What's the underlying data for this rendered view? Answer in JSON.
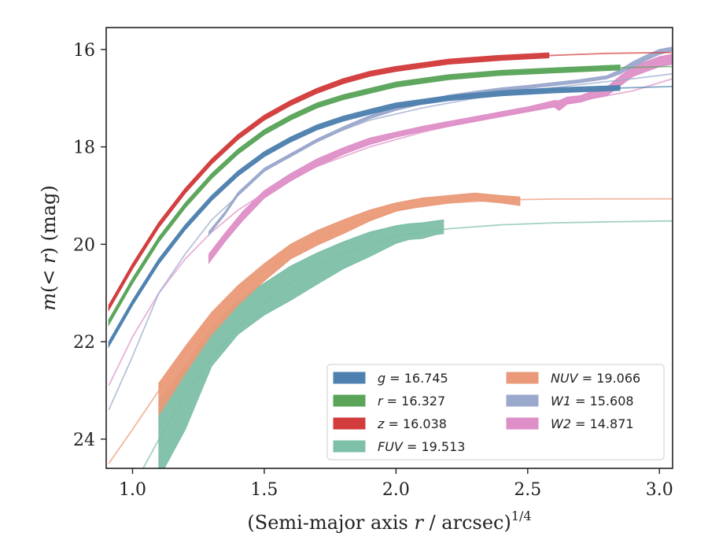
{
  "chart_data": {
    "type": "line",
    "xlabel": "(Semi-major axis r / arcsec)^{1/4}",
    "ylabel": "m(< r) (mag)",
    "xlim": [
      0.9,
      3.05
    ],
    "ylim": [
      24.6,
      15.55
    ],
    "y_inverted": true,
    "grid": false,
    "legend_position": "lower-right",
    "xticks": [
      {
        "value": 1.0,
        "label": "1.0"
      },
      {
        "value": 1.5,
        "label": "1.5"
      },
      {
        "value": 2.0,
        "label": "2.0"
      },
      {
        "value": 2.5,
        "label": "2.5"
      },
      {
        "value": 3.0,
        "label": "3.0"
      }
    ],
    "yticks": [
      {
        "value": 16,
        "label": "16"
      },
      {
        "value": 18,
        "label": "18"
      },
      {
        "value": 20,
        "label": "20"
      },
      {
        "value": 22,
        "label": "22"
      },
      {
        "value": 24,
        "label": "24"
      }
    ],
    "series": [
      {
        "key": "W2",
        "name": "W2 = 14.871",
        "color": "#de8fc7",
        "model": [
          [
            0.91,
            22.9
          ],
          [
            1.0,
            21.9
          ],
          [
            1.1,
            21.0
          ],
          [
            1.2,
            20.3
          ],
          [
            1.3,
            19.75
          ],
          [
            1.4,
            19.3
          ],
          [
            1.5,
            18.95
          ],
          [
            1.7,
            18.4
          ],
          [
            1.9,
            18.0
          ],
          [
            2.1,
            17.7
          ],
          [
            2.3,
            17.45
          ],
          [
            2.5,
            17.25
          ],
          [
            2.7,
            17.05
          ],
          [
            2.9,
            16.85
          ],
          [
            3.05,
            16.6
          ]
        ],
        "observed": [
          [
            1.29,
            20.38,
            20.2
          ],
          [
            1.35,
            19.95,
            19.78
          ],
          [
            1.42,
            19.5,
            19.32
          ],
          [
            1.5,
            19.05,
            18.9
          ],
          [
            1.6,
            18.7,
            18.55
          ],
          [
            1.7,
            18.4,
            18.25
          ],
          [
            1.8,
            18.15,
            18.02
          ],
          [
            1.9,
            17.95,
            17.82
          ],
          [
            2.0,
            17.8,
            17.7
          ],
          [
            2.1,
            17.68,
            17.58
          ],
          [
            2.2,
            17.58,
            17.48
          ],
          [
            2.3,
            17.48,
            17.38
          ],
          [
            2.4,
            17.38,
            17.28
          ],
          [
            2.5,
            17.28,
            17.18
          ],
          [
            2.6,
            17.18,
            17.05
          ],
          [
            2.62,
            17.25,
            17.05
          ],
          [
            2.65,
            17.12,
            16.98
          ],
          [
            2.7,
            17.08,
            16.95
          ],
          [
            2.75,
            17.0,
            16.85
          ],
          [
            2.8,
            16.95,
            16.78
          ],
          [
            2.85,
            16.75,
            16.55
          ],
          [
            2.9,
            16.55,
            16.35
          ],
          [
            2.95,
            16.45,
            16.25
          ],
          [
            3.0,
            16.35,
            16.15
          ],
          [
            3.05,
            16.3,
            16.1
          ]
        ]
      },
      {
        "key": "W1",
        "name": "W1 = 15.608",
        "color": "#9aa8cc",
        "model": [
          [
            0.91,
            23.4
          ],
          [
            1.0,
            22.3
          ],
          [
            1.1,
            21.0
          ],
          [
            1.2,
            20.2
          ],
          [
            1.3,
            19.5
          ],
          [
            1.4,
            19.0
          ],
          [
            1.5,
            18.5
          ],
          [
            1.7,
            17.85
          ],
          [
            1.9,
            17.45
          ],
          [
            2.1,
            17.2
          ],
          [
            2.3,
            17.0
          ],
          [
            2.5,
            16.85
          ],
          [
            2.7,
            16.72
          ],
          [
            2.9,
            16.6
          ],
          [
            3.05,
            16.5
          ]
        ],
        "observed": [
          [
            1.29,
            19.8,
            19.74
          ],
          [
            1.35,
            19.4,
            19.34
          ],
          [
            1.4,
            19.0,
            18.94
          ],
          [
            1.5,
            18.5,
            18.44
          ],
          [
            1.6,
            18.2,
            18.14
          ],
          [
            1.7,
            17.9,
            17.84
          ],
          [
            1.8,
            17.65,
            17.59
          ],
          [
            1.9,
            17.42,
            17.36
          ],
          [
            2.0,
            17.25,
            17.19
          ],
          [
            2.1,
            17.12,
            17.06
          ],
          [
            2.2,
            17.0,
            16.94
          ],
          [
            2.3,
            16.92,
            16.86
          ],
          [
            2.4,
            16.85,
            16.79
          ],
          [
            2.5,
            16.8,
            16.74
          ],
          [
            2.6,
            16.74,
            16.68
          ],
          [
            2.7,
            16.68,
            16.62
          ],
          [
            2.8,
            16.6,
            16.54
          ],
          [
            2.85,
            16.5,
            16.42
          ],
          [
            2.9,
            16.35,
            16.25
          ],
          [
            2.95,
            16.22,
            16.12
          ],
          [
            3.0,
            16.1,
            16.0
          ],
          [
            3.05,
            16.02,
            15.95
          ]
        ]
      },
      {
        "key": "FUV",
        "name": "FUV = 19.513",
        "color": "#7dbfa7",
        "model": [
          [
            0.91,
            26.0
          ],
          [
            1.0,
            25.0
          ],
          [
            1.1,
            24.0
          ],
          [
            1.2,
            23.1
          ],
          [
            1.3,
            22.35
          ],
          [
            1.4,
            21.7
          ],
          [
            1.5,
            21.2
          ],
          [
            1.6,
            20.8
          ],
          [
            1.7,
            20.45
          ],
          [
            1.8,
            20.18
          ],
          [
            1.9,
            19.98
          ],
          [
            2.0,
            19.83
          ],
          [
            2.2,
            19.68
          ],
          [
            2.4,
            19.6
          ],
          [
            2.6,
            19.56
          ],
          [
            2.8,
            19.54
          ],
          [
            3.05,
            19.52
          ]
        ],
        "observed": [
          [
            1.1,
            24.8,
            23.2
          ],
          [
            1.2,
            23.8,
            22.5
          ],
          [
            1.3,
            22.5,
            21.7
          ],
          [
            1.4,
            21.85,
            21.15
          ],
          [
            1.5,
            21.45,
            20.8
          ],
          [
            1.6,
            21.15,
            20.45
          ],
          [
            1.7,
            20.82,
            20.18
          ],
          [
            1.8,
            20.5,
            19.95
          ],
          [
            1.9,
            20.25,
            19.75
          ],
          [
            2.0,
            19.98,
            19.62
          ],
          [
            2.05,
            19.9,
            19.58
          ],
          [
            2.1,
            19.88,
            19.56
          ],
          [
            2.15,
            19.8,
            19.52
          ],
          [
            2.18,
            19.78,
            19.5
          ]
        ]
      },
      {
        "key": "NUV",
        "name": "NUV = 19.066",
        "color": "#ea9a78",
        "model": [
          [
            0.91,
            24.5
          ],
          [
            1.0,
            23.8
          ],
          [
            1.1,
            23.0
          ],
          [
            1.2,
            22.2
          ],
          [
            1.3,
            21.55
          ],
          [
            1.4,
            21.0
          ],
          [
            1.5,
            20.55
          ],
          [
            1.6,
            20.2
          ],
          [
            1.7,
            19.9
          ],
          [
            1.8,
            19.65
          ],
          [
            1.9,
            19.45
          ],
          [
            2.0,
            19.3
          ],
          [
            2.2,
            19.15
          ],
          [
            2.4,
            19.09
          ],
          [
            2.6,
            19.07
          ],
          [
            3.05,
            19.066
          ]
        ],
        "observed": [
          [
            1.1,
            23.5,
            22.85
          ],
          [
            1.2,
            22.65,
            22.1
          ],
          [
            1.3,
            21.85,
            21.4
          ],
          [
            1.4,
            21.25,
            20.85
          ],
          [
            1.5,
            20.75,
            20.4
          ],
          [
            1.6,
            20.3,
            20.0
          ],
          [
            1.7,
            20.02,
            19.72
          ],
          [
            1.8,
            19.78,
            19.5
          ],
          [
            1.9,
            19.52,
            19.3
          ],
          [
            2.0,
            19.32,
            19.15
          ],
          [
            2.1,
            19.22,
            19.05
          ],
          [
            2.2,
            19.15,
            19.0
          ],
          [
            2.3,
            19.1,
            18.95
          ],
          [
            2.4,
            19.15,
            19.0
          ],
          [
            2.47,
            19.2,
            19.03
          ]
        ]
      },
      {
        "key": "g",
        "name": "g = 16.745",
        "color": "#4e81af",
        "model": [
          [
            0.91,
            22.05
          ],
          [
            1.0,
            21.2
          ],
          [
            1.1,
            20.35
          ],
          [
            1.2,
            19.65
          ],
          [
            1.3,
            19.05
          ],
          [
            1.4,
            18.55
          ],
          [
            1.5,
            18.15
          ],
          [
            1.6,
            17.85
          ],
          [
            1.7,
            17.6
          ],
          [
            1.8,
            17.42
          ],
          [
            1.9,
            17.28
          ],
          [
            2.0,
            17.15
          ],
          [
            2.2,
            17.0
          ],
          [
            2.4,
            16.9
          ],
          [
            2.6,
            16.84
          ],
          [
            2.8,
            16.8
          ],
          [
            3.05,
            16.76
          ]
        ],
        "observed": [
          [
            0.91,
            22.1,
            22.0
          ],
          [
            1.0,
            21.25,
            21.15
          ],
          [
            1.1,
            20.4,
            20.3
          ],
          [
            1.2,
            19.7,
            19.6
          ],
          [
            1.3,
            19.1,
            19.0
          ],
          [
            1.4,
            18.6,
            18.5
          ],
          [
            1.5,
            18.2,
            18.1
          ],
          [
            1.6,
            17.9,
            17.8
          ],
          [
            1.7,
            17.65,
            17.55
          ],
          [
            1.8,
            17.47,
            17.37
          ],
          [
            1.9,
            17.33,
            17.23
          ],
          [
            2.0,
            17.2,
            17.1
          ],
          [
            2.2,
            17.05,
            16.95
          ],
          [
            2.4,
            16.95,
            16.85
          ],
          [
            2.6,
            16.89,
            16.79
          ],
          [
            2.8,
            16.85,
            16.75
          ],
          [
            2.85,
            16.84,
            16.74
          ]
        ]
      },
      {
        "key": "r",
        "name": "r = 16.327",
        "color": "#5aa45a",
        "model": [
          [
            0.91,
            21.6
          ],
          [
            1.0,
            20.75
          ],
          [
            1.1,
            19.9
          ],
          [
            1.2,
            19.2
          ],
          [
            1.3,
            18.6
          ],
          [
            1.4,
            18.1
          ],
          [
            1.5,
            17.7
          ],
          [
            1.6,
            17.4
          ],
          [
            1.7,
            17.15
          ],
          [
            1.8,
            16.98
          ],
          [
            1.9,
            16.85
          ],
          [
            2.0,
            16.72
          ],
          [
            2.2,
            16.57
          ],
          [
            2.4,
            16.48
          ],
          [
            2.6,
            16.43
          ],
          [
            2.8,
            16.38
          ],
          [
            3.05,
            16.35
          ]
        ],
        "observed": [
          [
            0.91,
            21.65,
            21.55
          ],
          [
            1.0,
            20.8,
            20.7
          ],
          [
            1.1,
            19.95,
            19.85
          ],
          [
            1.2,
            19.25,
            19.15
          ],
          [
            1.3,
            18.65,
            18.55
          ],
          [
            1.4,
            18.15,
            18.05
          ],
          [
            1.5,
            17.75,
            17.65
          ],
          [
            1.6,
            17.45,
            17.35
          ],
          [
            1.7,
            17.2,
            17.1
          ],
          [
            1.8,
            17.03,
            16.93
          ],
          [
            1.9,
            16.9,
            16.8
          ],
          [
            2.0,
            16.77,
            16.67
          ],
          [
            2.2,
            16.62,
            16.52
          ],
          [
            2.4,
            16.53,
            16.43
          ],
          [
            2.6,
            16.48,
            16.38
          ],
          [
            2.8,
            16.43,
            16.33
          ],
          [
            2.85,
            16.42,
            16.32
          ]
        ]
      },
      {
        "key": "z",
        "name": "z = 16.038",
        "color": "#d23c3c",
        "model": [
          [
            0.91,
            21.3
          ],
          [
            1.0,
            20.45
          ],
          [
            1.1,
            19.6
          ],
          [
            1.2,
            18.9
          ],
          [
            1.3,
            18.3
          ],
          [
            1.4,
            17.8
          ],
          [
            1.5,
            17.4
          ],
          [
            1.6,
            17.1
          ],
          [
            1.7,
            16.85
          ],
          [
            1.8,
            16.65
          ],
          [
            1.9,
            16.5
          ],
          [
            2.0,
            16.4
          ],
          [
            2.2,
            16.25
          ],
          [
            2.4,
            16.17
          ],
          [
            2.6,
            16.12
          ],
          [
            2.8,
            16.08
          ],
          [
            3.05,
            16.06
          ]
        ],
        "observed": [
          [
            0.91,
            21.35,
            21.25
          ],
          [
            1.0,
            20.5,
            20.4
          ],
          [
            1.1,
            19.65,
            19.55
          ],
          [
            1.2,
            18.95,
            18.85
          ],
          [
            1.3,
            18.35,
            18.25
          ],
          [
            1.4,
            17.85,
            17.75
          ],
          [
            1.5,
            17.45,
            17.35
          ],
          [
            1.6,
            17.15,
            17.05
          ],
          [
            1.7,
            16.9,
            16.8
          ],
          [
            1.8,
            16.7,
            16.6
          ],
          [
            1.9,
            16.55,
            16.45
          ],
          [
            2.0,
            16.45,
            16.35
          ],
          [
            2.2,
            16.3,
            16.2
          ],
          [
            2.4,
            16.22,
            16.12
          ],
          [
            2.58,
            16.17,
            16.07
          ]
        ]
      }
    ],
    "legend": [
      {
        "key": "g",
        "label": "g = 16.745",
        "color": "#4e81af"
      },
      {
        "key": "r",
        "label": "r = 16.327",
        "color": "#5aa45a"
      },
      {
        "key": "z",
        "label": "z = 16.038",
        "color": "#d23c3c"
      },
      {
        "key": "FUV",
        "label": "FUV = 19.513",
        "color": "#7dbfa7"
      },
      {
        "key": "NUV",
        "label": "NUV = 19.066",
        "color": "#ea9a78"
      },
      {
        "key": "W1",
        "label": "W1 = 15.608",
        "color": "#9aa8cc"
      },
      {
        "key": "W2",
        "label": "W2 = 14.871",
        "color": "#de8fc7"
      }
    ]
  }
}
